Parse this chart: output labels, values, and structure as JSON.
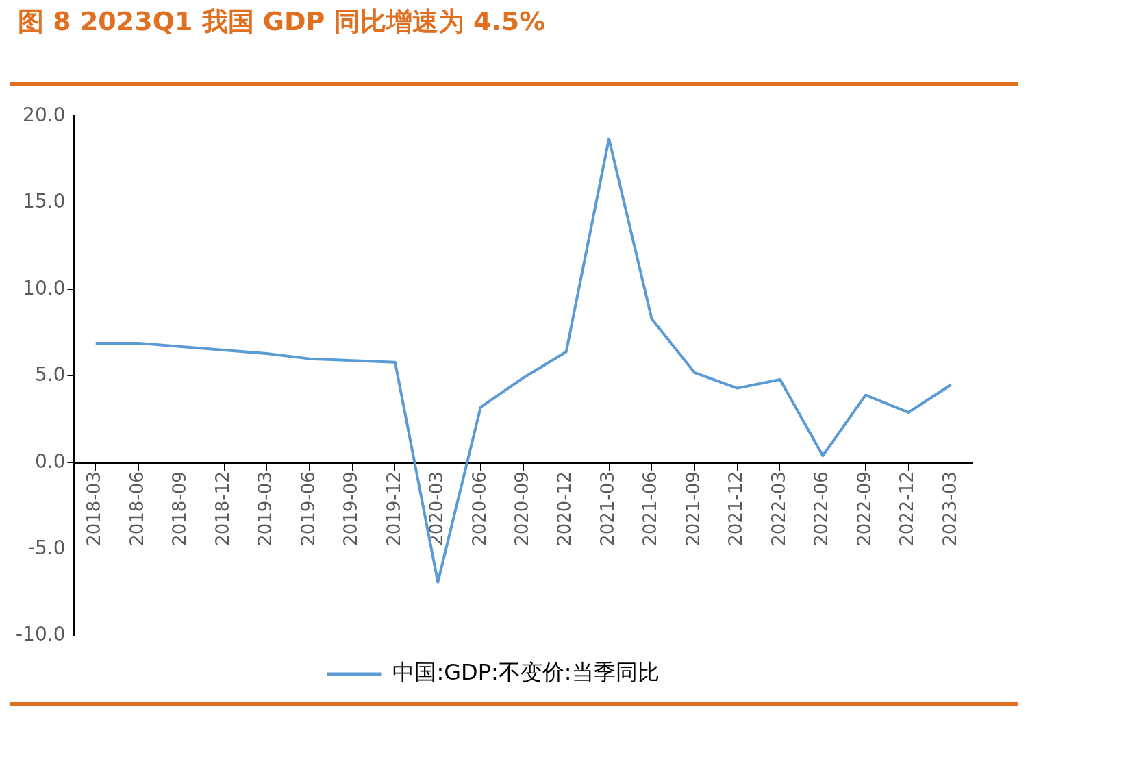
{
  "chart_data": {
    "type": "line",
    "title": "图 8 2023Q1 我国 GDP 同比增速为 4.5%",
    "categories": [
      "2018-03",
      "2018-06",
      "2018-09",
      "2018-12",
      "2019-03",
      "2019-06",
      "2019-09",
      "2019-12",
      "2020-03",
      "2020-06",
      "2020-09",
      "2020-12",
      "2021-03",
      "2021-06",
      "2021-09",
      "2021-12",
      "2022-03",
      "2022-06",
      "2022-09",
      "2022-12",
      "2023-03"
    ],
    "series": [
      {
        "name": "中国:GDP:不变价:当季同比",
        "color": "#5b9bd5",
        "values": [
          6.9,
          6.9,
          6.7,
          6.5,
          6.3,
          6.0,
          5.9,
          5.8,
          -6.9,
          3.2,
          4.9,
          6.4,
          18.7,
          8.3,
          5.2,
          4.3,
          4.8,
          0.4,
          3.9,
          2.9,
          4.5
        ]
      }
    ],
    "ylim": [
      -10,
      20
    ],
    "yticks": [
      {
        "value": -10,
        "label": "-10.0"
      },
      {
        "value": -5,
        "label": "-5.0"
      },
      {
        "value": 0,
        "label": "0.0"
      },
      {
        "value": 5,
        "label": "5.0"
      },
      {
        "value": 10,
        "label": "10.0"
      },
      {
        "value": 15,
        "label": "15.0"
      },
      {
        "value": 20,
        "label": "20.0"
      }
    ],
    "grid": false,
    "legend": "bottom",
    "marker": "none"
  }
}
